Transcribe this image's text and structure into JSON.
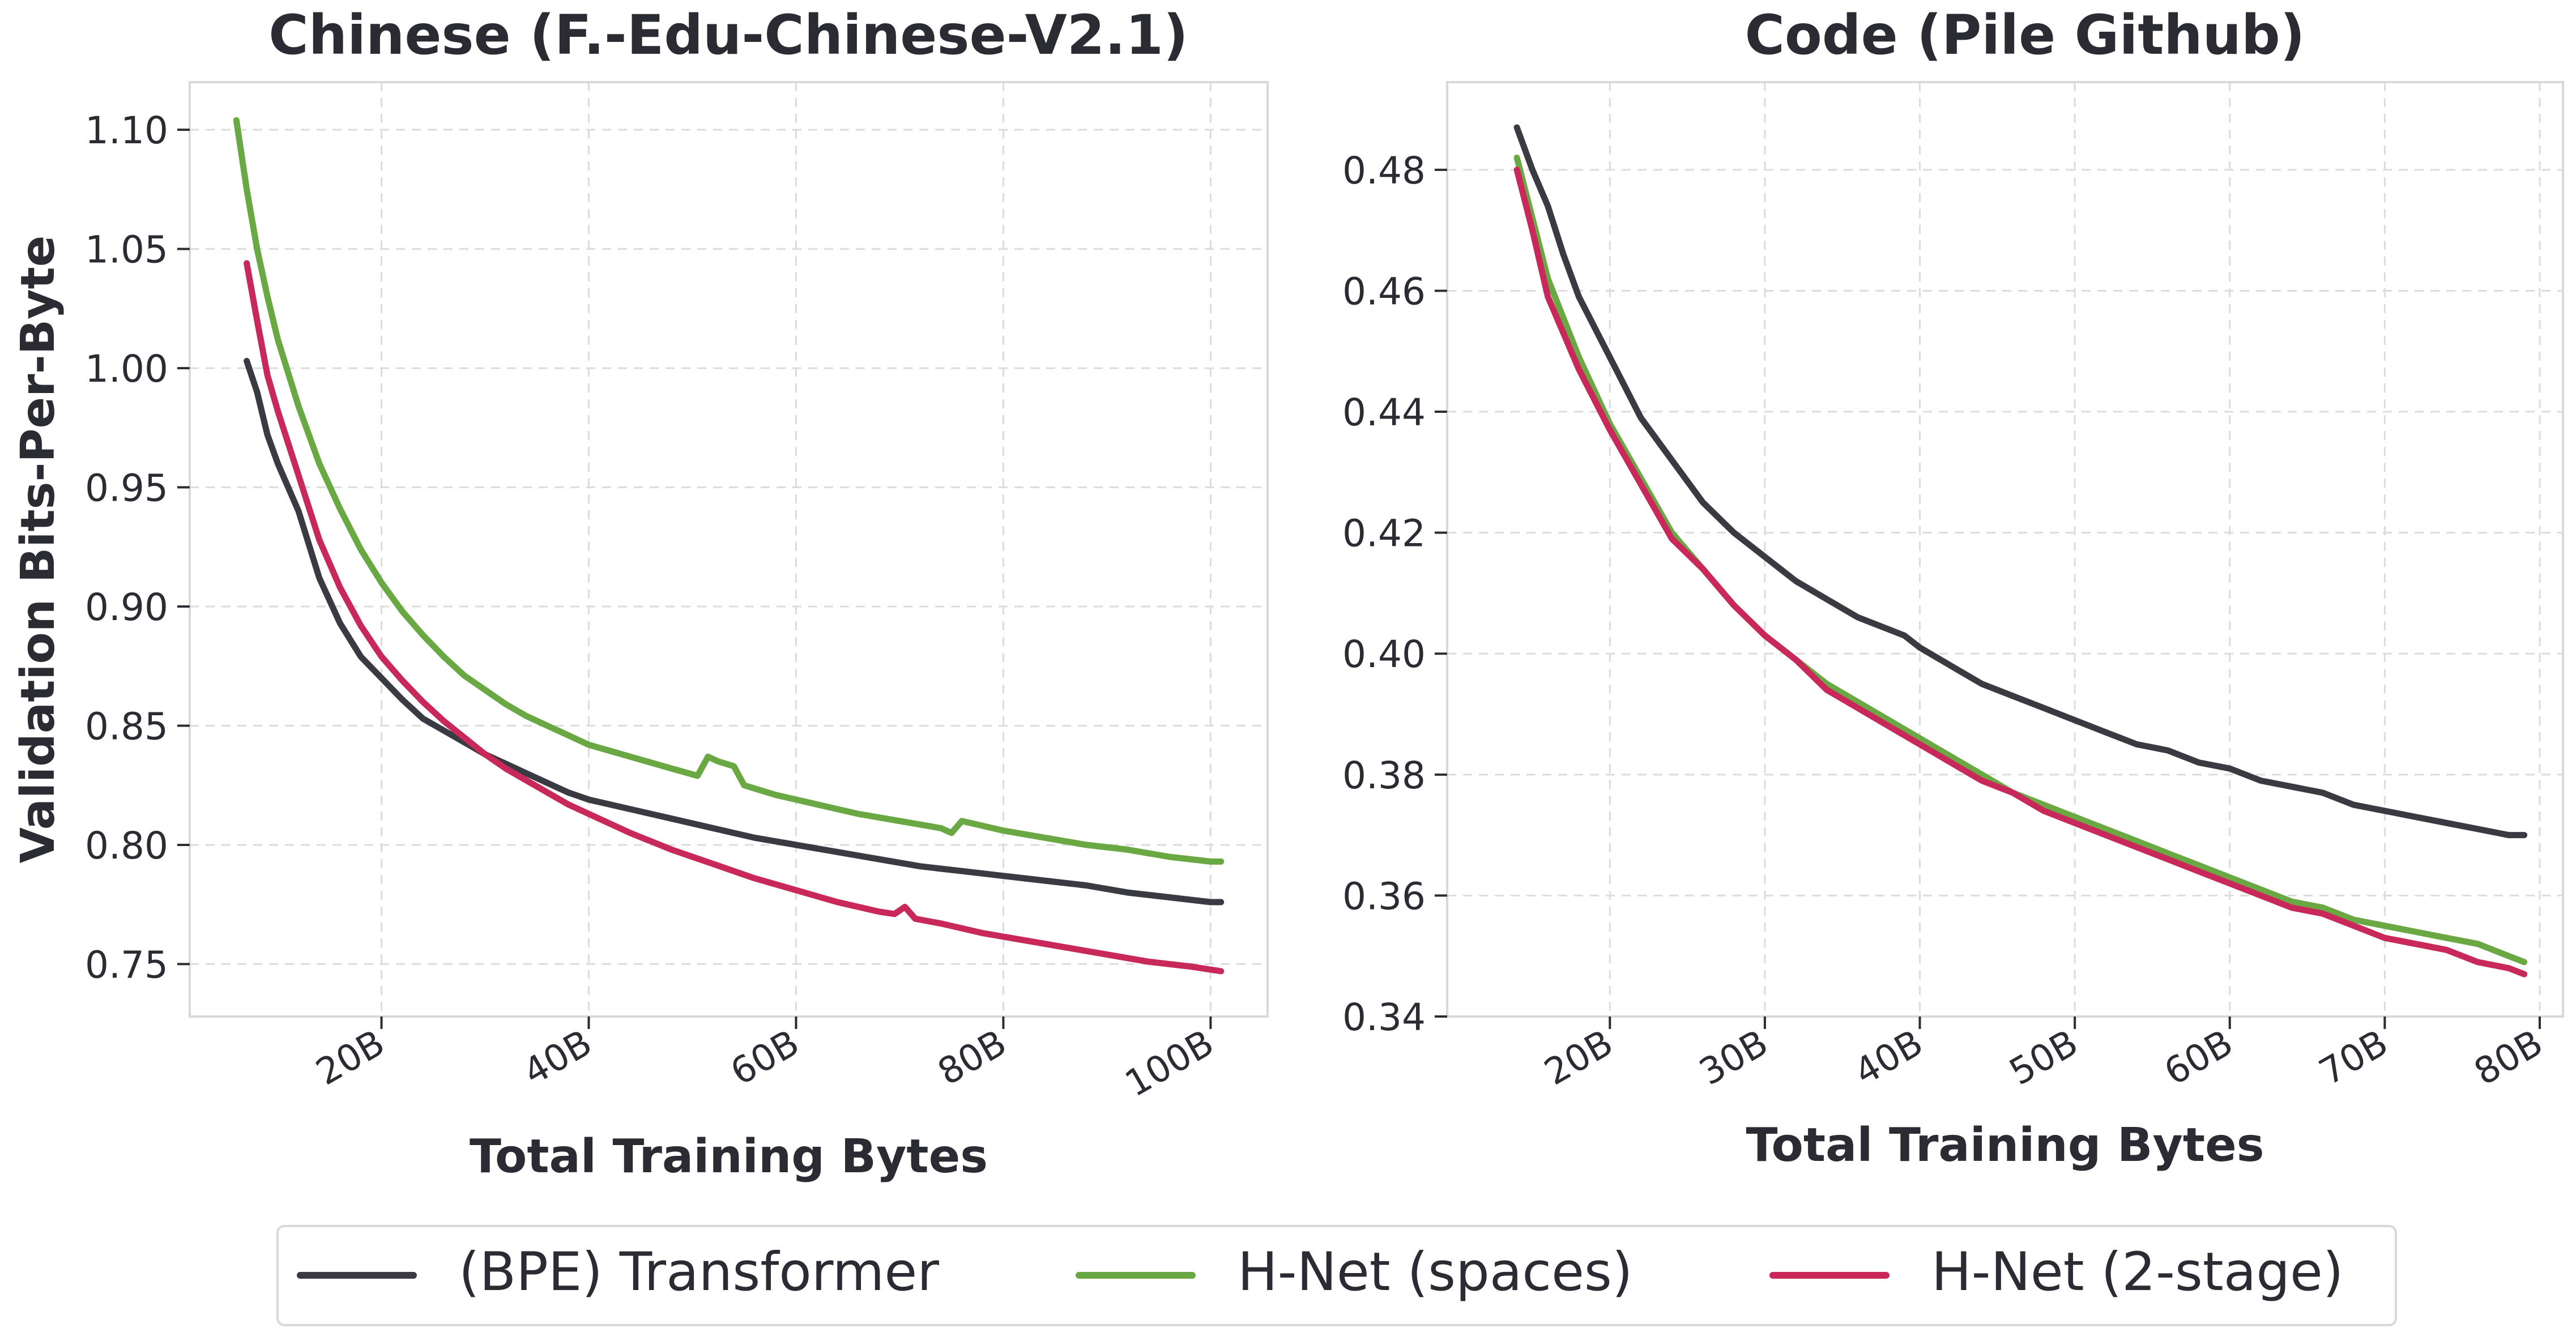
{
  "chart_data": [
    {
      "type": "line",
      "title": "Chinese (F.-Edu-Chinese-V2.1)",
      "xlabel": "Total Training Bytes",
      "ylabel": "Validation Bits-Per-Byte",
      "xlim": [
        1.5,
        105.5
      ],
      "ylim": [
        0.728,
        1.12
      ],
      "xticks": [
        20,
        40,
        60,
        80,
        100
      ],
      "xticklabels": [
        "20B",
        "40B",
        "60B",
        "80B",
        "100B"
      ],
      "yticks": [
        0.75,
        0.8,
        0.85,
        0.9,
        0.95,
        1.0,
        1.05,
        1.1
      ],
      "yticklabels": [
        "0.75",
        "0.80",
        "0.85",
        "0.90",
        "0.95",
        "1.00",
        "1.05",
        "1.10"
      ],
      "grid": true,
      "series": [
        {
          "name": "(BPE) Transformer",
          "color": "#3a3a42",
          "x": [
            7,
            8,
            9,
            10,
            12,
            14,
            16,
            18,
            20,
            22,
            24,
            26,
            28,
            30,
            32,
            34,
            36,
            38,
            40,
            44,
            48,
            52,
            56,
            60,
            64,
            68,
            72,
            76,
            80,
            84,
            88,
            92,
            96,
            100,
            101
          ],
          "y": [
            1.003,
            0.99,
            0.972,
            0.96,
            0.94,
            0.912,
            0.893,
            0.879,
            0.87,
            0.861,
            0.853,
            0.848,
            0.843,
            0.838,
            0.834,
            0.83,
            0.826,
            0.822,
            0.819,
            0.815,
            0.811,
            0.807,
            0.803,
            0.8,
            0.797,
            0.794,
            0.791,
            0.789,
            0.787,
            0.785,
            0.783,
            0.78,
            0.778,
            0.776,
            0.776
          ]
        },
        {
          "name": "H-Net (spaces)",
          "color": "#6aa844",
          "x": [
            6,
            7,
            8,
            9,
            10,
            12,
            14,
            16,
            18,
            20,
            22,
            24,
            26,
            28,
            30,
            32,
            34,
            36,
            38,
            40,
            44,
            48,
            50.5,
            51.5,
            52.5,
            54,
            55,
            58,
            62,
            66,
            70,
            74,
            75,
            76,
            80,
            84,
            88,
            92,
            96,
            100,
            101
          ],
          "y": [
            1.104,
            1.075,
            1.05,
            1.03,
            1.012,
            0.984,
            0.96,
            0.941,
            0.924,
            0.91,
            0.898,
            0.888,
            0.879,
            0.871,
            0.865,
            0.859,
            0.854,
            0.85,
            0.846,
            0.842,
            0.837,
            0.832,
            0.829,
            0.837,
            0.835,
            0.833,
            0.825,
            0.821,
            0.817,
            0.813,
            0.81,
            0.807,
            0.805,
            0.81,
            0.806,
            0.803,
            0.8,
            0.798,
            0.795,
            0.793,
            0.793
          ]
        },
        {
          "name": "H-Net (2-stage)",
          "color": "#c8285a",
          "x": [
            7,
            8,
            9,
            10,
            12,
            14,
            16,
            18,
            20,
            22,
            24,
            26,
            28,
            30,
            32,
            34,
            36,
            38,
            40,
            44,
            48,
            52,
            56,
            60,
            64,
            68,
            69.5,
            70.5,
            71.5,
            74,
            78,
            82,
            86,
            90,
            94,
            98,
            101
          ],
          "y": [
            1.044,
            1.02,
            0.997,
            0.982,
            0.955,
            0.928,
            0.908,
            0.892,
            0.879,
            0.869,
            0.86,
            0.852,
            0.845,
            0.838,
            0.832,
            0.827,
            0.822,
            0.817,
            0.813,
            0.805,
            0.798,
            0.792,
            0.786,
            0.781,
            0.776,
            0.772,
            0.771,
            0.774,
            0.769,
            0.767,
            0.763,
            0.76,
            0.757,
            0.754,
            0.751,
            0.749,
            0.747
          ]
        }
      ]
    },
    {
      "type": "line",
      "title": "Code (Pile Github)",
      "xlabel": "Total Training Bytes",
      "ylabel": "",
      "xlim": [
        9.5,
        81.5
      ],
      "ylim": [
        0.34,
        0.4945
      ],
      "xticks": [
        20,
        30,
        40,
        50,
        60,
        70,
        80
      ],
      "xticklabels": [
        "20B",
        "30B",
        "40B",
        "50B",
        "60B",
        "70B",
        "80B"
      ],
      "yticks": [
        0.34,
        0.36,
        0.38,
        0.4,
        0.42,
        0.44,
        0.46,
        0.48
      ],
      "yticklabels": [
        "0.34",
        "0.36",
        "0.38",
        "0.40",
        "0.42",
        "0.44",
        "0.46",
        "0.48"
      ],
      "grid": true,
      "series": [
        {
          "name": "(BPE) Transformer",
          "color": "#3a3a42",
          "x": [
            14,
            15,
            16,
            17,
            18,
            20,
            22,
            24,
            26,
            28,
            30,
            32,
            34,
            36,
            38,
            39,
            40,
            42,
            44,
            46,
            48,
            50,
            52,
            54,
            56,
            58,
            60,
            62,
            64,
            66,
            68,
            70,
            72,
            74,
            76,
            78,
            79
          ],
          "y": [
            0.487,
            0.48,
            0.474,
            0.466,
            0.459,
            0.449,
            0.439,
            0.432,
            0.425,
            0.42,
            0.416,
            0.412,
            0.409,
            0.406,
            0.404,
            0.403,
            0.401,
            0.398,
            0.395,
            0.393,
            0.391,
            0.389,
            0.387,
            0.385,
            0.384,
            0.382,
            0.381,
            0.379,
            0.378,
            0.377,
            0.375,
            0.374,
            0.373,
            0.372,
            0.371,
            0.37,
            0.37
          ]
        },
        {
          "name": "H-Net (spaces)",
          "color": "#6aa844",
          "x": [
            14,
            15,
            16,
            18,
            20,
            22,
            24,
            26,
            28,
            30,
            32,
            34,
            36,
            38,
            40,
            42,
            44,
            46,
            48,
            50,
            52,
            54,
            56,
            58,
            60,
            62,
            64,
            66,
            68,
            70,
            72,
            74,
            76,
            78,
            79
          ],
          "y": [
            0.482,
            0.472,
            0.462,
            0.449,
            0.438,
            0.429,
            0.42,
            0.414,
            0.408,
            0.403,
            0.399,
            0.395,
            0.392,
            0.389,
            0.386,
            0.383,
            0.38,
            0.377,
            0.375,
            0.373,
            0.371,
            0.369,
            0.367,
            0.365,
            0.363,
            0.361,
            0.359,
            0.358,
            0.356,
            0.355,
            0.354,
            0.353,
            0.352,
            0.35,
            0.349
          ]
        },
        {
          "name": "H-Net (2-stage)",
          "color": "#c8285a",
          "x": [
            14,
            15,
            16,
            18,
            20,
            22,
            24,
            26,
            28,
            30,
            32,
            34,
            36,
            38,
            40,
            42,
            44,
            46,
            48,
            50,
            52,
            54,
            56,
            58,
            60,
            62,
            64,
            66,
            68,
            70,
            72,
            74,
            76,
            78,
            79
          ],
          "y": [
            0.48,
            0.47,
            0.459,
            0.447,
            0.437,
            0.428,
            0.419,
            0.414,
            0.408,
            0.403,
            0.399,
            0.394,
            0.391,
            0.388,
            0.385,
            0.382,
            0.379,
            0.377,
            0.374,
            0.372,
            0.37,
            0.368,
            0.366,
            0.364,
            0.362,
            0.36,
            0.358,
            0.357,
            0.355,
            0.353,
            0.352,
            0.351,
            0.349,
            0.348,
            0.347
          ]
        }
      ]
    }
  ],
  "legend": {
    "placement": "bottom-center",
    "entries": [
      {
        "label": "(BPE) Transformer",
        "color": "#3a3a42"
      },
      {
        "label": "H-Net (spaces)",
        "color": "#6aa844"
      },
      {
        "label": "H-Net (2-stage)",
        "color": "#c8285a"
      }
    ]
  }
}
